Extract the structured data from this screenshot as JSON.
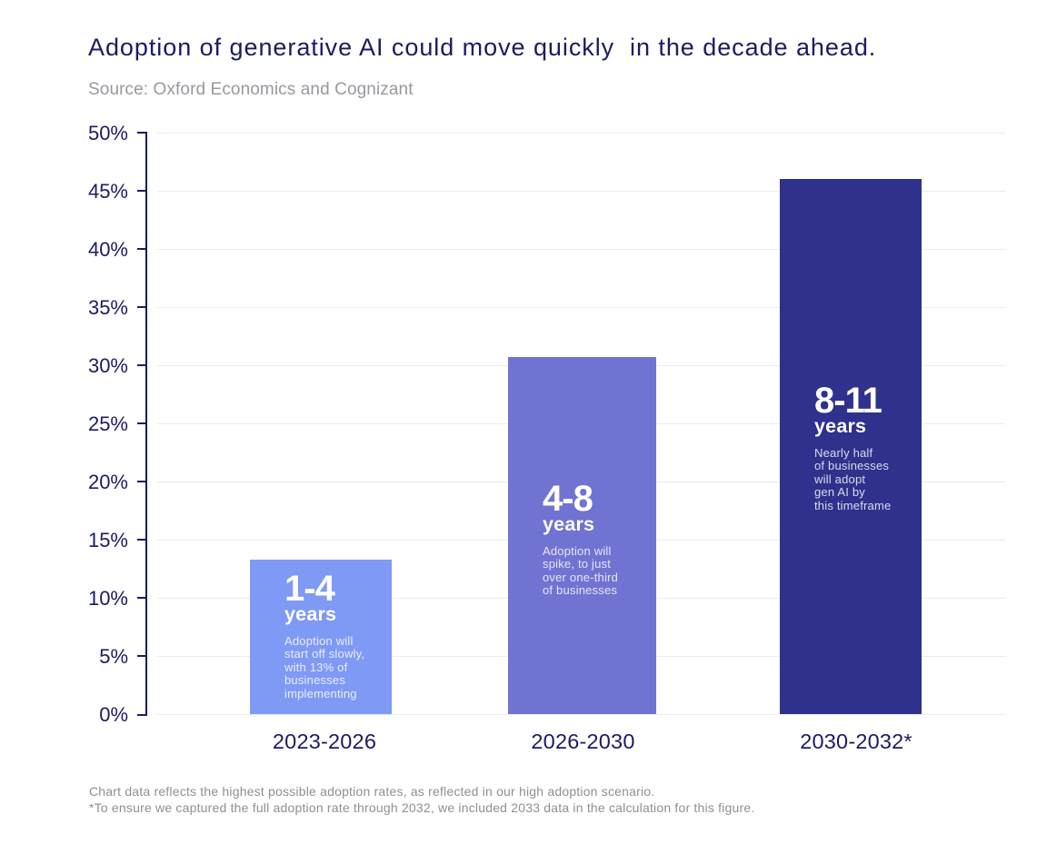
{
  "header": {
    "title": "Adoption of generative AI could move quickly  in the decade ahead.",
    "source": "Source: Oxford Economics and Cognizant"
  },
  "chart_data": {
    "type": "bar",
    "title": "Adoption of generative AI could move quickly  in the decade ahead.",
    "xlabel": "",
    "ylabel": "",
    "categories": [
      "2023-2026",
      "2026-2030",
      "2030-2032*"
    ],
    "values": [
      13.3,
      30.7,
      46
    ],
    "ylim": [
      0,
      50
    ],
    "y_tick_step": 5,
    "y_tick_labels": [
      "0%",
      "5%",
      "10%",
      "15%",
      "20%",
      "25%",
      "30%",
      "35%",
      "40%",
      "45%",
      "50%"
    ],
    "grid": true,
    "legend": false,
    "bar_colors": [
      "#7F9AF4",
      "#7173D2",
      "#2F318C"
    ],
    "annotations": [
      {
        "range": "1-4",
        "unit": "years",
        "description": "Adoption will\nstart off slowly,\nwith 13% of\nbusinesses\nimplementing"
      },
      {
        "range": "4-8",
        "unit": "years",
        "description": "Adoption will\nspike, to just\nover one-third\nof businesses"
      },
      {
        "range": "8-11",
        "unit": "years",
        "description": "Nearly half\nof businesses\nwill adopt\ngen AI by\nthis timeframe"
      }
    ]
  },
  "footnotes": [
    "Chart data reflects the highest possible adoption rates, as reflected in our high adoption scenario.",
    "*To ensure we captured the full adoption rate through 2032, we included 2033 data in the calculation for this figure."
  ],
  "colors": {
    "navy": "#1B1B66",
    "subtitle_gray": "#98989F",
    "footnote_gray": "#8F8F96",
    "gridline": "#ECECEF",
    "bar_text": "#FFFFFF"
  }
}
